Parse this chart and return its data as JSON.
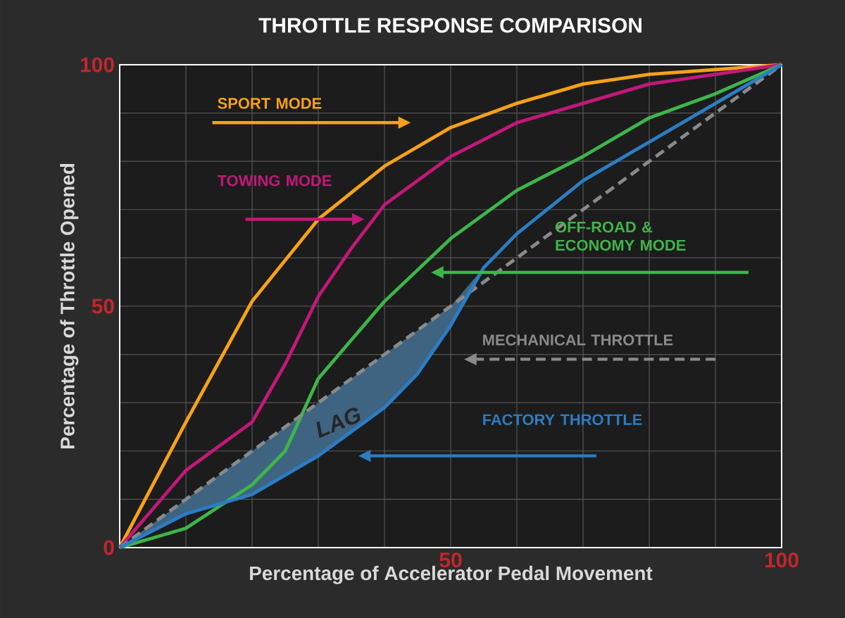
{
  "chart_data": {
    "type": "line",
    "title": "THROTTLE RESPONSE COMPARISON",
    "xlabel": "Percentage of Accelerator Pedal Movement",
    "ylabel": "Percentage of Throttle Opened",
    "xlim": [
      0,
      100
    ],
    "ylim": [
      0,
      100
    ],
    "xticks": [
      {
        "value": 0,
        "label": null
      },
      {
        "value": 10,
        "label": null
      },
      {
        "value": 20,
        "label": null
      },
      {
        "value": 30,
        "label": null
      },
      {
        "value": 40,
        "label": null
      },
      50,
      {
        "value": 60,
        "label": null
      },
      {
        "value": 70,
        "label": null
      },
      {
        "value": 80,
        "label": null
      },
      {
        "value": 90,
        "label": null
      },
      100
    ],
    "yticks": [
      0,
      {
        "value": 10,
        "label": null
      },
      {
        "value": 20,
        "label": null
      },
      {
        "value": 30,
        "label": null
      },
      {
        "value": 40,
        "label": null
      },
      50,
      {
        "value": 60,
        "label": null
      },
      {
        "value": 70,
        "label": null
      },
      {
        "value": 80,
        "label": null
      },
      {
        "value": 90,
        "label": null
      },
      100
    ],
    "grid": true,
    "series": [
      {
        "name": "SPORT MODE",
        "color": "#f7a11a",
        "line_style": "solid",
        "x": [
          0,
          10,
          20,
          30,
          40,
          50,
          60,
          70,
          80,
          90,
          100
        ],
        "values": [
          0,
          26,
          51,
          68,
          79,
          87,
          92,
          96,
          98,
          99,
          100
        ]
      },
      {
        "name": "TOWING MODE",
        "color": "#c2187a",
        "line_style": "solid",
        "x": [
          0,
          10,
          20,
          25,
          30,
          35,
          40,
          50,
          60,
          70,
          80,
          90,
          100
        ],
        "values": [
          0,
          16,
          26,
          38,
          52,
          62,
          71,
          81,
          88,
          92,
          96,
          98,
          100
        ]
      },
      {
        "name": "OFF-ROAD & ECONOMY MODE",
        "color": "#3db54a",
        "line_style": "solid",
        "x": [
          0,
          10,
          20,
          25,
          30,
          40,
          50,
          60,
          70,
          80,
          90,
          100
        ],
        "values": [
          0,
          4,
          13,
          20,
          35,
          51,
          64,
          74,
          81,
          89,
          94,
          100
        ]
      },
      {
        "name": "MECHANICAL THROTTLE",
        "color": "#8a8a8a",
        "line_style": "dashed",
        "x": [
          0,
          100
        ],
        "values": [
          0,
          100
        ]
      },
      {
        "name": "FACTORY THROTTLE",
        "color": "#2b7dc4",
        "line_style": "solid",
        "x": [
          0,
          10,
          20,
          30,
          40,
          45,
          50,
          55,
          60,
          70,
          80,
          90,
          100
        ],
        "values": [
          0,
          7,
          11,
          19,
          29,
          36,
          46,
          58,
          65,
          76,
          84,
          92,
          100
        ],
        "lower": [
          0,
          7,
          11,
          19,
          29,
          36,
          46,
          58,
          65,
          76,
          84,
          92,
          100
        ],
        "upper": [
          0,
          10,
          20,
          30,
          40,
          45,
          50,
          58,
          65,
          76,
          84,
          92,
          100
        ]
      }
    ],
    "annotations": [
      "LAG"
    ]
  }
}
